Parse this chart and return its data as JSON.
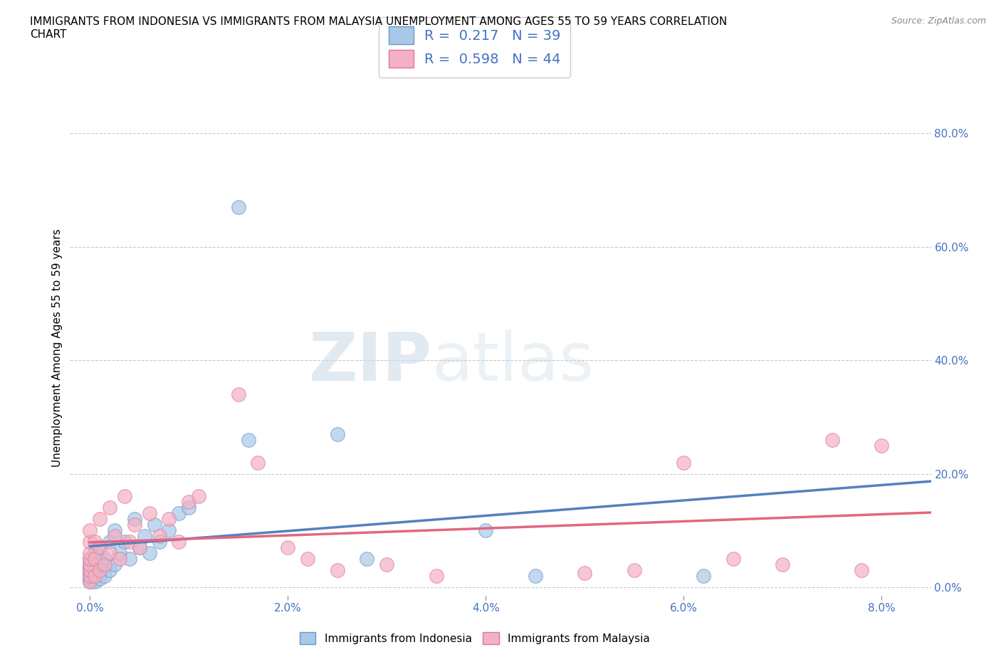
{
  "title": "IMMIGRANTS FROM INDONESIA VS IMMIGRANTS FROM MALAYSIA UNEMPLOYMENT AMONG AGES 55 TO 59 YEARS CORRELATION\nCHART",
  "source": "Source: ZipAtlas.com",
  "xlabel_vals": [
    0.0,
    2.0,
    4.0,
    6.0,
    8.0
  ],
  "ylabel_vals": [
    0.0,
    20.0,
    40.0,
    60.0,
    80.0
  ],
  "xlim": [
    -0.2,
    8.5
  ],
  "ylim": [
    -1.5,
    86
  ],
  "indonesia_color": "#a8c8e8",
  "malaysia_color": "#f4b0c4",
  "indonesia_edge": "#6898c8",
  "malaysia_edge": "#e07898",
  "trend_indonesia_color": "#5580c0",
  "trend_malaysia_color": "#e06880",
  "R_indonesia": 0.217,
  "N_indonesia": 39,
  "R_malaysia": 0.598,
  "N_malaysia": 44,
  "watermark_zip": "ZIP",
  "watermark_atlas": "atlas",
  "indonesia_x": [
    0.0,
    0.0,
    0.0,
    0.0,
    0.0,
    0.0,
    0.0,
    0.0,
    0.05,
    0.05,
    0.05,
    0.1,
    0.1,
    0.1,
    0.15,
    0.15,
    0.2,
    0.2,
    0.25,
    0.25,
    0.3,
    0.35,
    0.4,
    0.45,
    0.5,
    0.55,
    0.6,
    0.65,
    0.7,
    0.8,
    0.9,
    1.0,
    1.5,
    1.6,
    2.5,
    2.8,
    4.0,
    4.5,
    6.2
  ],
  "indonesia_y": [
    1.0,
    1.5,
    2.0,
    2.5,
    3.0,
    3.5,
    4.0,
    5.0,
    1.0,
    3.0,
    6.0,
    1.5,
    4.0,
    7.0,
    2.0,
    5.0,
    3.0,
    8.0,
    4.0,
    10.0,
    6.0,
    8.0,
    5.0,
    12.0,
    7.0,
    9.0,
    6.0,
    11.0,
    8.0,
    10.0,
    13.0,
    14.0,
    67.0,
    26.0,
    27.0,
    5.0,
    10.0,
    2.0,
    2.0
  ],
  "malaysia_x": [
    0.0,
    0.0,
    0.0,
    0.0,
    0.0,
    0.0,
    0.0,
    0.0,
    0.05,
    0.05,
    0.05,
    0.1,
    0.1,
    0.1,
    0.15,
    0.2,
    0.2,
    0.25,
    0.3,
    0.35,
    0.4,
    0.45,
    0.5,
    0.6,
    0.7,
    0.8,
    0.9,
    1.0,
    1.1,
    1.5,
    1.7,
    2.0,
    2.2,
    2.5,
    3.0,
    3.5,
    5.0,
    5.5,
    6.0,
    6.5,
    7.0,
    7.5,
    7.8,
    8.0
  ],
  "malaysia_y": [
    1.0,
    2.0,
    3.0,
    4.0,
    5.0,
    6.0,
    8.0,
    10.0,
    2.0,
    5.0,
    8.0,
    3.0,
    7.0,
    12.0,
    4.0,
    6.0,
    14.0,
    9.0,
    5.0,
    16.0,
    8.0,
    11.0,
    7.0,
    13.0,
    9.0,
    12.0,
    8.0,
    15.0,
    16.0,
    34.0,
    22.0,
    7.0,
    5.0,
    3.0,
    4.0,
    2.0,
    2.5,
    3.0,
    22.0,
    5.0,
    4.0,
    26.0,
    3.0,
    25.0
  ]
}
